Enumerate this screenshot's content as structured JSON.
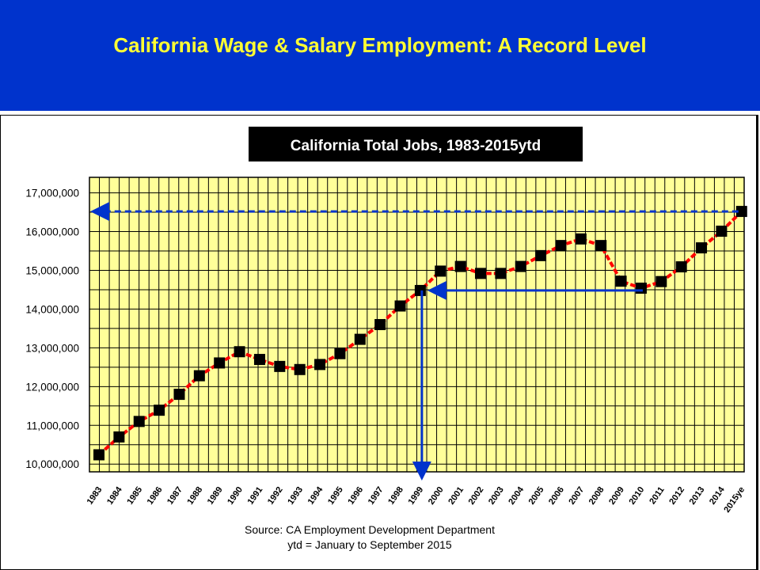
{
  "slide": {
    "title": "California Wage & Salary Employment:  A Record Level"
  },
  "colors": {
    "background": "#0033cc",
    "title": "#ffff33",
    "plot_bg": "#ffff99",
    "grid": "#000000",
    "line": "#ff0000",
    "marker": "#000000",
    "arrow": "#0033cc"
  },
  "chart_data": {
    "type": "line",
    "title": "California Total Jobs, 1983-2015ytd",
    "categories": [
      "1983",
      "1984",
      "1985",
      "1986",
      "1987",
      "1988",
      "1989",
      "1990",
      "1991",
      "1992",
      "1993",
      "1994",
      "1995",
      "1996",
      "1997",
      "1998",
      "1999",
      "2000",
      "2001",
      "2002",
      "2003",
      "2004",
      "2005",
      "2006",
      "2007",
      "2008",
      "2009",
      "2010",
      "2011",
      "2012",
      "2013",
      "2014",
      "2015ye"
    ],
    "series": [
      {
        "values": [
          10240000,
          10700000,
          11100000,
          11390000,
          11800000,
          12280000,
          12610000,
          12900000,
          12700000,
          12520000,
          12440000,
          12570000,
          12850000,
          13220000,
          13600000,
          14080000,
          14480000,
          14980000,
          15100000,
          14920000,
          14920000,
          15100000,
          15380000,
          15640000,
          15810000,
          15640000,
          14720000,
          14540000,
          14710000,
          15090000,
          15580000,
          16010000,
          16520000
        ]
      }
    ],
    "ylim": [
      9800000,
      17400000
    ],
    "y_ticks": [
      "10,000,000",
      "11,000,000",
      "12,000,000",
      "13,000,000",
      "14,000,000",
      "15,000,000",
      "16,000,000",
      "17,000,000"
    ],
    "grid": true,
    "source_lines": [
      "Source:  CA Employment Development Department",
      "ytd = January to September 2015"
    ],
    "annotations": [
      {
        "kind": "dashed-arrow",
        "from_year": "2015ye",
        "value": 16520000,
        "to": "y-axis"
      },
      {
        "kind": "solid-arrow",
        "from_year": "2010",
        "to_year": "1999",
        "value": 14480000
      },
      {
        "kind": "solid-arrow-down",
        "year": "1999",
        "to": "x-axis"
      }
    ]
  }
}
